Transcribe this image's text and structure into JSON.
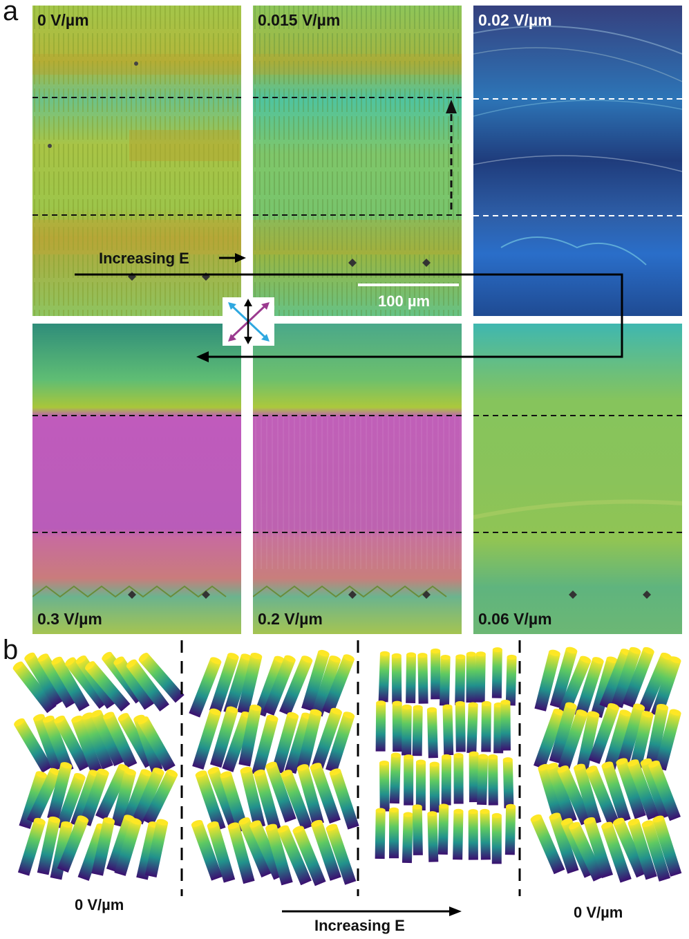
{
  "panel_a": {
    "letter": "a",
    "micrographs": [
      {
        "label": "0 V/µm"
      },
      {
        "label": "0.015 V/µm"
      },
      {
        "label": "0.02 V/µm"
      },
      {
        "label": "0.3 V/µm"
      },
      {
        "label": "0.2 V/µm"
      },
      {
        "label": "0.06 V/µm"
      }
    ],
    "increasing_label": "Increasing E",
    "scale_bar": "100 µm"
  },
  "panel_b": {
    "letter": "b",
    "left_label": "0 V/µm",
    "right_label": "0 V/µm",
    "arrow_label": "Increasing E"
  },
  "colors": {
    "yellow_green": "#9cc53a",
    "cyan_green": "#4fc2a0",
    "magenta": "#c35cc0",
    "deep_blue": "#1d3f8a",
    "polarizer_blue": "#2fa8e0",
    "polarizer_purple": "#9b3a8f"
  }
}
